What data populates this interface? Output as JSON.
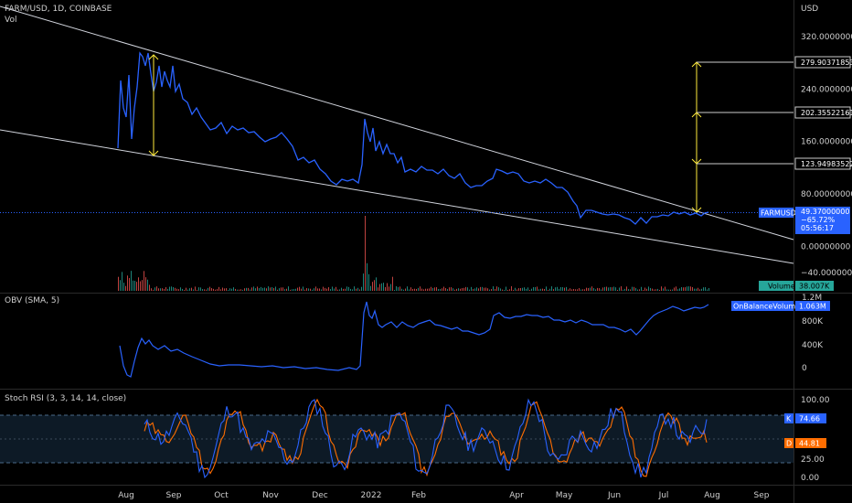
{
  "header": {
    "symbol_line": "FARM/USD, 1D, COINBASE",
    "vol_label": "Vol",
    "currency": "USD"
  },
  "colors": {
    "background": "#000000",
    "price_line": "#2962ff",
    "trendline": "#d1d4dc",
    "measure": "#ffeb3b",
    "label_blue": "#2962ff",
    "stoch_k": "#2962ff",
    "stoch_d": "#ff6d00",
    "vol_up": "#26a69a",
    "vol_down": "#ef5350"
  },
  "price_axis": {
    "ticks": [
      "320.00000000",
      "240.00000000",
      "160.00000000",
      "80.00000000",
      "0.00000000",
      "−40.00000000"
    ],
    "levels": [
      "279.90371853",
      "202.35522161",
      "123.94983522"
    ],
    "symbol_badge": "FARMUSD",
    "last_price": "49.37000000",
    "change": "−65.72%",
    "countdown": "05:56:17",
    "volume_badge": "Volume",
    "volume_value": "38.007K"
  },
  "obv_pane": {
    "title": "OBV (SMA, 5)",
    "badge": "OnBalanceVolume",
    "value": "1.063M",
    "ticks": [
      "1.2M",
      "800K",
      "400K",
      "0"
    ]
  },
  "stoch_pane": {
    "title": "Stoch RSI (3, 3, 14, 14, close)",
    "ticks": [
      "100.00",
      "25.00",
      "0.00"
    ],
    "k_label": "K",
    "k_value": "74.66",
    "d_label": "D",
    "d_value": "44.81"
  },
  "x_axis": {
    "labels": [
      "Aug",
      "Sep",
      "Oct",
      "Nov",
      "Dec",
      "2022",
      "Feb",
      "Apr",
      "May",
      "Jun",
      "Jul",
      "Aug",
      "Sep"
    ]
  },
  "chart_data": [
    {
      "type": "line",
      "title": "FARM/USD, 1D, COINBASE",
      "ylabel": "USD",
      "ylim": [
        -40,
        340
      ],
      "x": [
        "Aug",
        "Aug",
        "Sep",
        "Sep",
        "Oct",
        "Oct",
        "Nov",
        "Nov",
        "Dec",
        "Dec",
        "2022",
        "2022",
        "Feb",
        "Feb",
        "Apr",
        "Apr",
        "May",
        "May",
        "Jun",
        "Jun",
        "Jul",
        "Jul",
        "Aug"
      ],
      "series": [
        {
          "values": [
            150,
            250,
            260,
            205,
            185,
            170,
            160,
            140,
            120,
            95,
            185,
            125,
            110,
            100,
            95,
            110,
            95,
            50,
            42,
            35,
            42,
            47,
            49
          ]
        }
      ]
    },
    {
      "type": "line",
      "title": "OBV (SMA, 5)",
      "ylim": [
        -100000,
        1300000
      ],
      "x": [
        "Aug",
        "Aug",
        "Sep",
        "Sep",
        "Oct",
        "Oct",
        "Nov",
        "Nov",
        "Dec",
        "Dec",
        "2022",
        "2022",
        "Feb",
        "Feb",
        "Apr",
        "Apr",
        "May",
        "May",
        "Jun",
        "Jun",
        "Jul",
        "Jul",
        "Aug"
      ],
      "series": [
        {
          "name": "OnBalanceVolume",
          "values": [
            280000,
            130000,
            290000,
            220000,
            150000,
            80000,
            70000,
            60000,
            40000,
            20000,
            1000000,
            850000,
            800000,
            750000,
            900000,
            870000,
            860000,
            810000,
            780000,
            820000,
            950000,
            1080000,
            1063000
          ]
        }
      ]
    },
    {
      "type": "line",
      "title": "Stoch RSI (3, 3, 14, 14, close)",
      "ylim": [
        0,
        100
      ],
      "x": [
        "Aug",
        "Sep",
        "Oct",
        "Nov",
        "Dec",
        "2022",
        "Feb",
        "Apr",
        "May",
        "Jun",
        "Jul",
        "Aug"
      ],
      "series": [
        {
          "name": "K",
          "values": [
            20,
            80,
            95,
            15,
            85,
            95,
            10,
            90,
            5,
            95,
            15,
            74.66
          ]
        },
        {
          "name": "D",
          "values": [
            25,
            70,
            85,
            25,
            75,
            85,
            20,
            80,
            15,
            85,
            25,
            44.81
          ]
        }
      ]
    }
  ]
}
